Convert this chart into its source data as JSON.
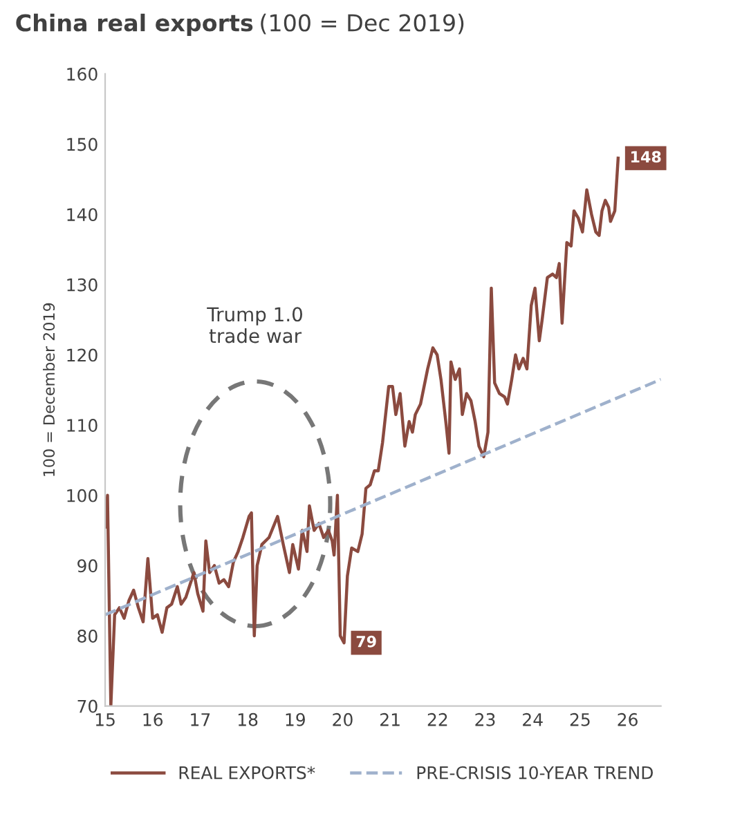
{
  "chart_data": {
    "type": "line",
    "title": "China real exports",
    "subtitle": "(100 = Dec 2019)",
    "ylabel": "100 = December 2019",
    "xlim": [
      15,
      26.7
    ],
    "xticks": [
      {
        "value": 15,
        "label": "15"
      },
      {
        "value": 16,
        "label": "16"
      },
      {
        "value": 17,
        "label": "17"
      },
      {
        "value": 18,
        "label": "18"
      },
      {
        "value": 19,
        "label": "19"
      },
      {
        "value": 20,
        "label": "20"
      },
      {
        "value": 21,
        "label": "21"
      },
      {
        "value": 22,
        "label": "22"
      },
      {
        "value": 23,
        "label": "23"
      },
      {
        "value": 24,
        "label": "24"
      },
      {
        "value": 25,
        "label": "25"
      },
      {
        "value": 26,
        "label": "26"
      }
    ],
    "ylim": [
      70,
      160
    ],
    "yticks": [
      70,
      80,
      90,
      100,
      110,
      120,
      130,
      140,
      150,
      160
    ],
    "legend": "bottom",
    "grid": false,
    "annotations": [
      "Trump 1.0\ntrade war"
    ],
    "series": [
      {
        "name": "REAL EXPORTS*",
        "color": "#8b4a3f",
        "line_style": "solid",
        "x": [
          15.0,
          15.05,
          15.12,
          15.2,
          15.3,
          15.4,
          15.5,
          15.6,
          15.7,
          15.8,
          15.9,
          16.0,
          16.1,
          16.2,
          16.3,
          16.4,
          16.52,
          16.6,
          16.7,
          16.87,
          16.95,
          17.06,
          17.12,
          17.2,
          17.3,
          17.4,
          17.5,
          17.6,
          17.7,
          17.8,
          17.9,
          18.03,
          18.08,
          18.14,
          18.2,
          18.3,
          18.45,
          18.63,
          18.75,
          18.88,
          18.95,
          19.07,
          19.15,
          19.25,
          19.3,
          19.4,
          19.5,
          19.6,
          19.7,
          19.78,
          19.82,
          19.89,
          19.95,
          20.03,
          20.1,
          20.19,
          20.32,
          20.41,
          20.49,
          20.58,
          20.67,
          20.75,
          20.84,
          20.97,
          21.05,
          21.12,
          21.21,
          21.31,
          21.4,
          21.47,
          21.53,
          21.64,
          21.7,
          21.79,
          21.9,
          21.99,
          22.07,
          22.18,
          22.24,
          22.28,
          22.37,
          22.46,
          22.52,
          22.61,
          22.7,
          22.79,
          22.87,
          22.97,
          23.06,
          23.13,
          23.2,
          23.3,
          23.41,
          23.47,
          23.56,
          23.64,
          23.71,
          23.8,
          23.88,
          23.97,
          24.05,
          24.14,
          24.2,
          24.31,
          24.42,
          24.5,
          24.56,
          24.62,
          24.72,
          24.81,
          24.87,
          24.96,
          25.05,
          25.14,
          25.24,
          25.33,
          25.4,
          25.46,
          25.53,
          25.6,
          25.64,
          25.73,
          25.8
        ],
        "values": [
          95.5,
          100,
          70,
          83,
          84,
          82.5,
          85,
          86.5,
          84,
          82,
          91,
          82.5,
          83,
          80.5,
          84,
          84.5,
          87,
          84.5,
          85.5,
          89,
          86,
          83.5,
          93.5,
          89,
          90,
          87.5,
          88,
          87,
          90.5,
          92,
          94,
          97,
          97.5,
          80,
          90,
          93,
          94,
          97,
          93,
          89,
          93,
          89.5,
          95,
          92,
          98.5,
          95,
          96,
          94,
          95,
          93.5,
          91.5,
          100,
          80,
          79,
          88.5,
          92.5,
          92,
          94.5,
          101,
          101.5,
          103.5,
          103.5,
          107.5,
          115.5,
          115.5,
          111.5,
          114.5,
          107,
          110.5,
          109,
          111.5,
          113,
          115,
          118,
          121,
          120,
          116.5,
          110,
          106,
          119,
          116.5,
          118,
          111.5,
          114.5,
          113.5,
          110.5,
          107,
          105.5,
          109,
          129.5,
          116,
          114.5,
          114,
          113,
          116.5,
          120,
          118,
          119.5,
          118,
          127,
          129.5,
          122,
          125,
          131,
          131.5,
          131,
          133,
          124.5,
          136,
          135.5,
          140.5,
          139.5,
          137.5,
          143.5,
          140,
          137.5,
          137,
          140.5,
          142,
          141,
          139,
          140.5,
          148
        ],
        "value_labels": [
          null,
          null,
          null,
          null,
          null,
          null,
          null,
          null,
          null,
          null,
          null,
          null,
          null,
          null,
          null,
          null,
          null,
          null,
          null,
          null,
          null,
          null,
          null,
          null,
          null,
          null,
          null,
          null,
          null,
          null,
          null,
          null,
          null,
          null,
          null,
          null,
          null,
          null,
          null,
          null,
          null,
          null,
          null,
          null,
          null,
          null,
          null,
          null,
          null,
          null,
          null,
          null,
          null,
          "79",
          null,
          null,
          null,
          null,
          null,
          null,
          null,
          null,
          null,
          null,
          null,
          null,
          null,
          null,
          null,
          null,
          null,
          null,
          null,
          null,
          null,
          null,
          null,
          null,
          null,
          null,
          null,
          null,
          null,
          null,
          null,
          null,
          null,
          null,
          null,
          null,
          null,
          null,
          null,
          null,
          null,
          null,
          null,
          null,
          null,
          null,
          null,
          null,
          null,
          null,
          null,
          null,
          null,
          null,
          null,
          null,
          null,
          null,
          null,
          null,
          null,
          null,
          null,
          null,
          null,
          null,
          null,
          null,
          "148"
        ]
      },
      {
        "name": "PRE-CRISIS 10-YEAR TREND",
        "color": "#9fb1cc",
        "line_style": "dashed",
        "x": [
          15,
          26.7
        ],
        "values": [
          83,
          116.5
        ]
      }
    ]
  }
}
